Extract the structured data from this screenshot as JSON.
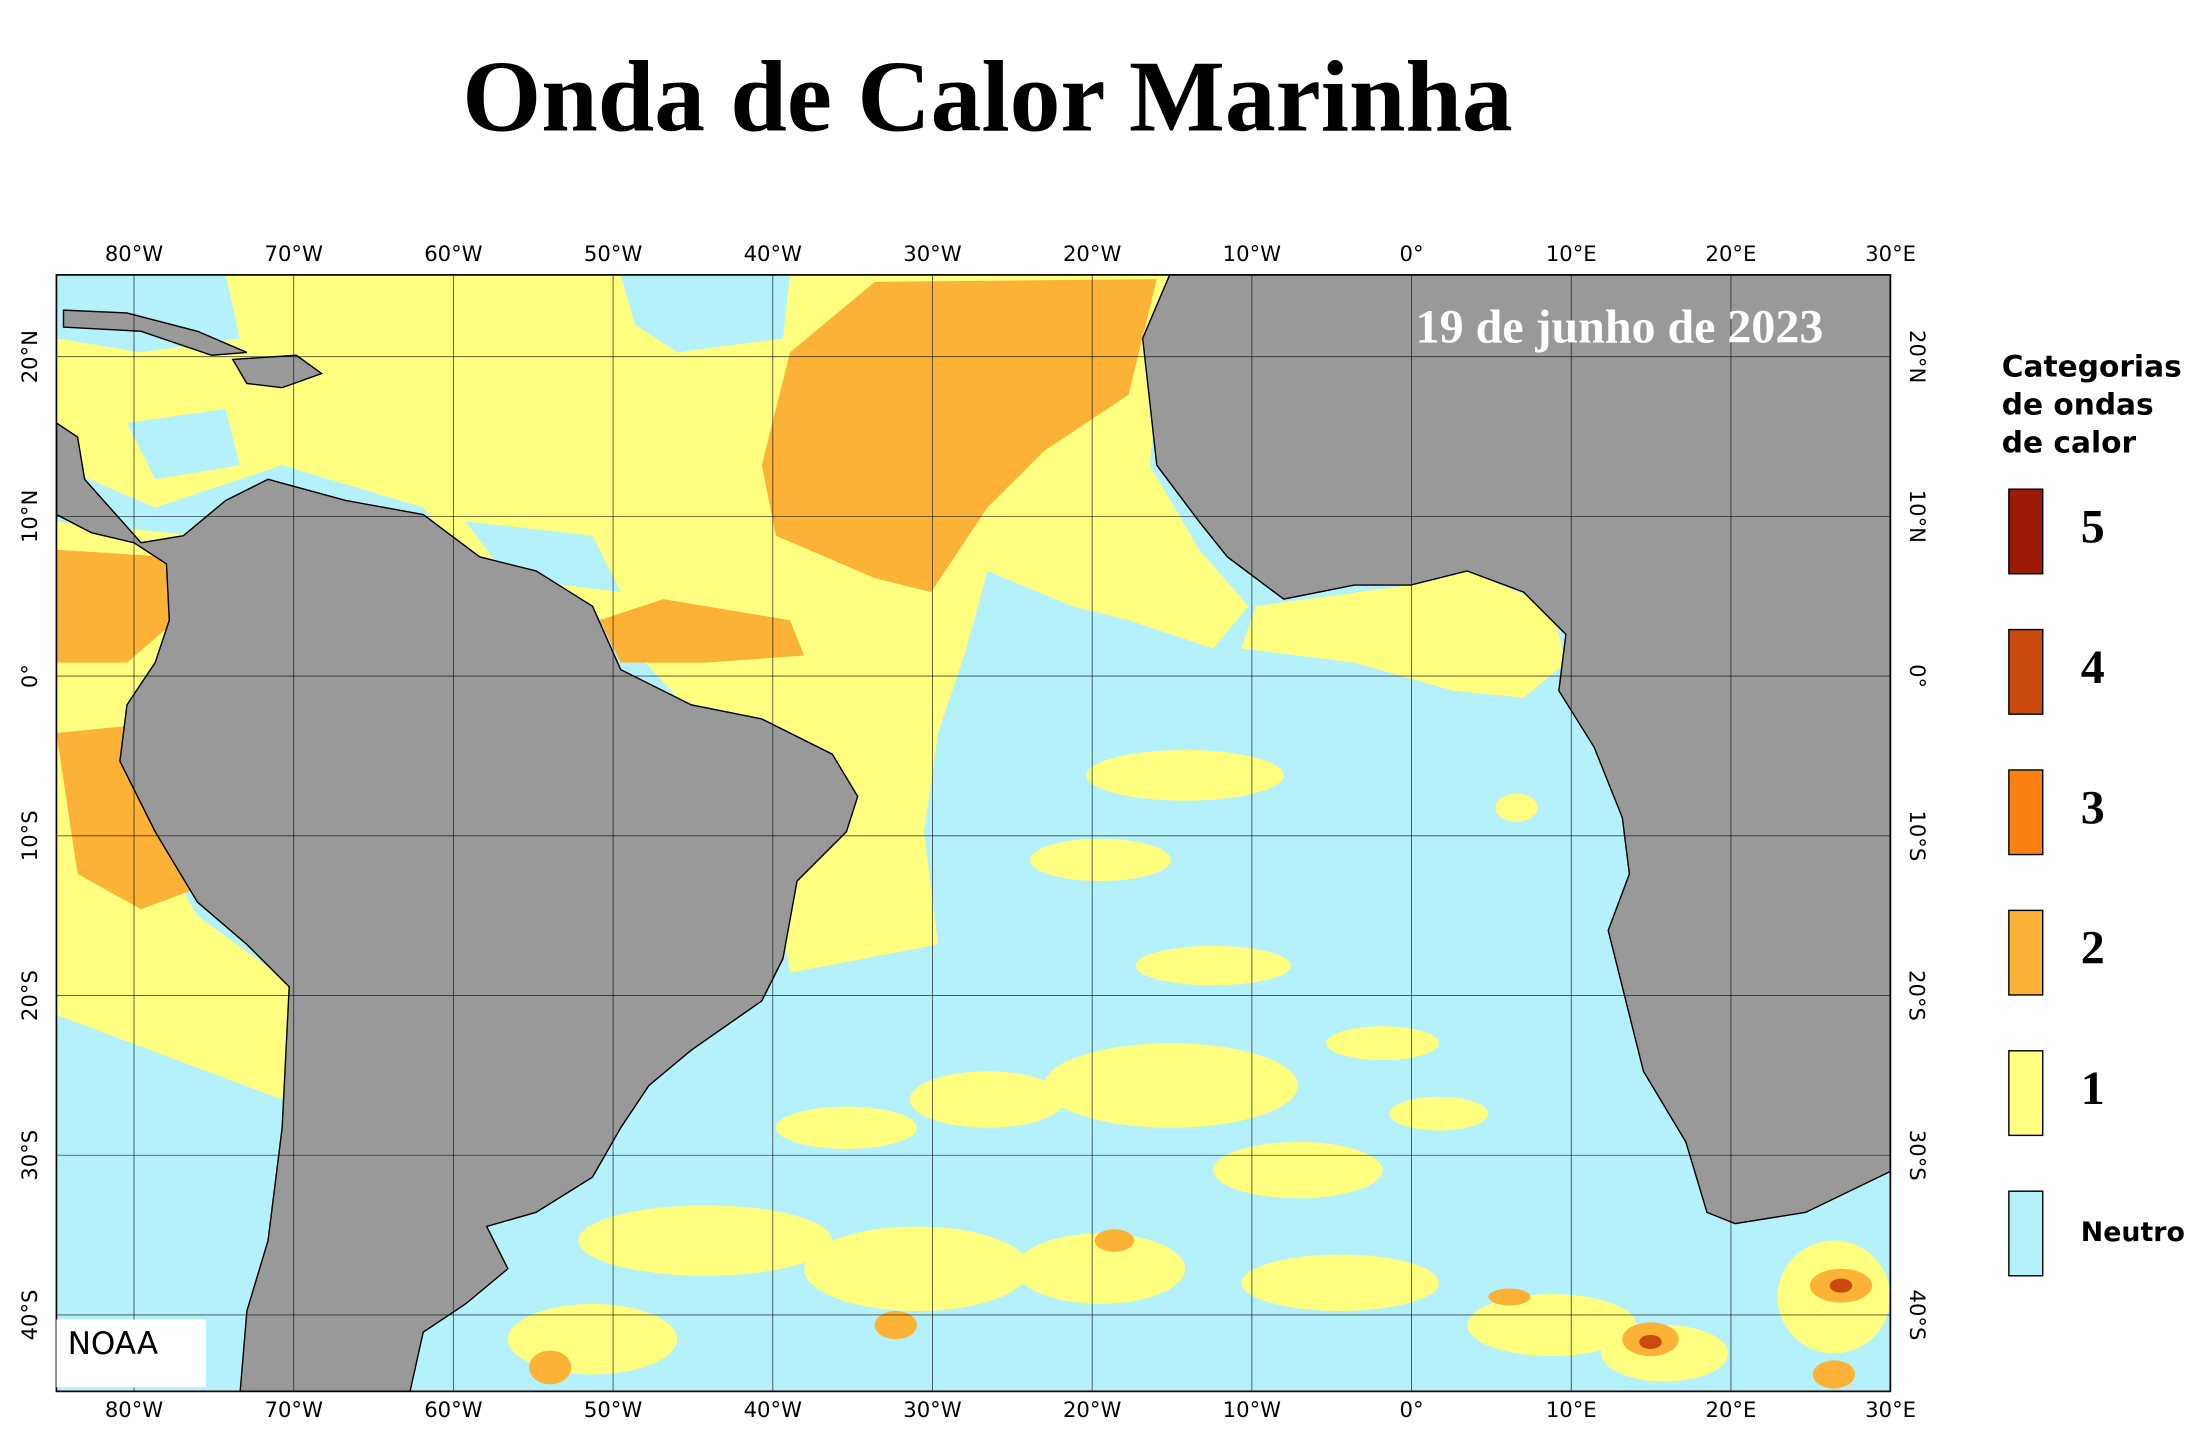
{
  "title": "Onda de Calor Marinha",
  "date": "19 de junho de 2023",
  "credit": "NOAA",
  "map": {
    "longitude_labels": [
      "80°W",
      "70°W",
      "60°W",
      "50°W",
      "40°W",
      "30°W",
      "20°W",
      "10°W",
      "0°",
      "10°E",
      "20°E",
      "30°E"
    ],
    "latitude_labels": [
      "20°N",
      "10°N",
      "0°",
      "10°S",
      "20°S",
      "30°S",
      "40°S"
    ]
  },
  "legend": {
    "title": [
      "Categorias",
      "de ondas",
      "de calor"
    ],
    "items": [
      {
        "label": "5",
        "color": "#9a1a06"
      },
      {
        "label": "4",
        "color": "#c94a0c"
      },
      {
        "label": "3",
        "color": "#fb8011"
      },
      {
        "label": "2",
        "color": "#fcb236"
      },
      {
        "label": "1",
        "color": "#ffff80"
      },
      {
        "label": "Neutro",
        "color": "#b5f1fb"
      }
    ]
  }
}
